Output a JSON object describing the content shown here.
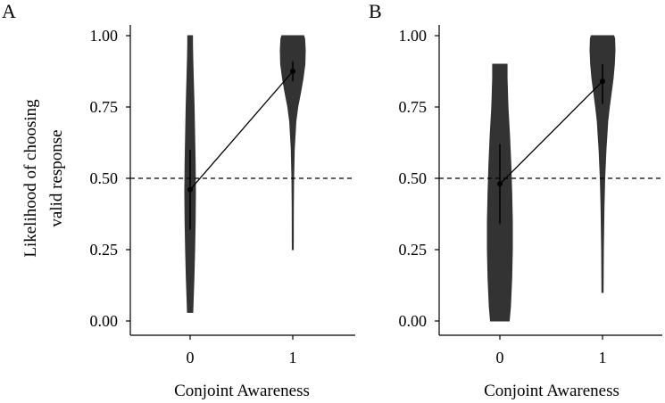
{
  "chart_data": [
    {
      "type": "violin",
      "panel_label": "A",
      "title": "",
      "xlabel": "Conjoint Awareness",
      "ylabel_lines": [
        "Likelihood of choosing",
        "valid response"
      ],
      "categories": [
        "0",
        "1"
      ],
      "ylim": [
        0,
        1
      ],
      "yticks": [
        "0.00",
        "0.25",
        "0.50",
        "0.75",
        "1.00"
      ],
      "ytick_values": [
        0,
        0.25,
        0.5,
        0.75,
        1.0
      ],
      "reference_line": {
        "y": 0.5,
        "style": "dashed"
      },
      "violins": [
        {
          "category": "0",
          "min": 0.03,
          "max": 1.0,
          "density_y": [
            0.03,
            0.06,
            0.15,
            0.25,
            0.35,
            0.45,
            0.55,
            0.65,
            0.75,
            0.85,
            0.92,
            0.97,
            1.0
          ],
          "density_w": [
            0.5,
            0.55,
            0.72,
            0.85,
            0.95,
            1.0,
            0.95,
            0.85,
            0.75,
            0.6,
            0.5,
            0.45,
            0.45
          ]
        },
        {
          "category": "1",
          "min": 0.25,
          "max": 1.0,
          "density_y": [
            0.25,
            0.4,
            0.5,
            0.6,
            0.7,
            0.75,
            0.8,
            0.85,
            0.9,
            0.95,
            0.99,
            1.0
          ],
          "density_w": [
            0.04,
            0.05,
            0.07,
            0.12,
            0.25,
            0.4,
            0.62,
            0.82,
            0.97,
            1.0,
            0.95,
            0.88
          ]
        }
      ],
      "means": [
        0.46,
        0.875
      ],
      "ci": [
        [
          0.32,
          0.6
        ],
        [
          0.84,
          0.91
        ]
      ]
    },
    {
      "type": "violin",
      "panel_label": "B",
      "title": "",
      "xlabel": "Conjoint Awareness",
      "ylabel_lines": [],
      "categories": [
        "0",
        "1"
      ],
      "ylim": [
        0,
        1
      ],
      "yticks": [
        "0.00",
        "0.25",
        "0.50",
        "0.75",
        "1.00"
      ],
      "ytick_values": [
        0,
        0.25,
        0.5,
        0.75,
        1.0
      ],
      "reference_line": {
        "y": 0.5,
        "style": "dashed"
      },
      "violins": [
        {
          "category": "0",
          "min": 0.0,
          "max": 0.9,
          "density_y": [
            0.0,
            0.05,
            0.15,
            0.25,
            0.35,
            0.45,
            0.55,
            0.65,
            0.75,
            0.85,
            0.9
          ],
          "density_w": [
            0.75,
            0.85,
            0.95,
            1.0,
            1.0,
            0.95,
            0.88,
            0.78,
            0.65,
            0.58,
            0.58
          ]
        },
        {
          "category": "1",
          "min": 0.1,
          "max": 1.0,
          "density_y": [
            0.1,
            0.25,
            0.4,
            0.5,
            0.6,
            0.7,
            0.75,
            0.8,
            0.85,
            0.9,
            0.95,
            0.99,
            1.0
          ],
          "density_w": [
            0.05,
            0.07,
            0.12,
            0.18,
            0.28,
            0.42,
            0.55,
            0.7,
            0.85,
            0.95,
            1.0,
            0.97,
            0.9
          ]
        }
      ],
      "means": [
        0.48,
        0.84
      ],
      "ci": [
        [
          0.34,
          0.62
        ],
        [
          0.76,
          0.9
        ]
      ]
    }
  ],
  "colors": {
    "violin_fill": "#333333",
    "line": "#000000",
    "background": "#ffffff"
  }
}
